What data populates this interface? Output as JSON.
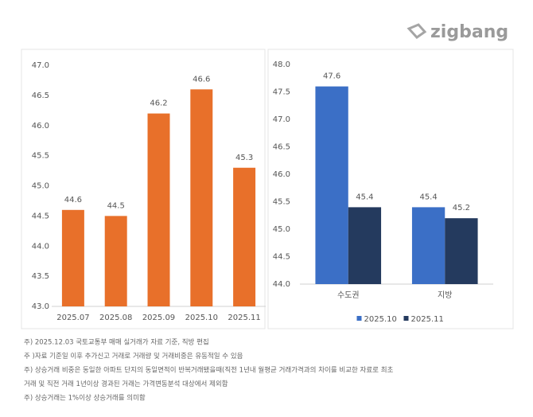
{
  "logo": "zigbang",
  "chart_data": [
    {
      "type": "bar",
      "categories": [
        "2025.07",
        "2025.08",
        "2025.09",
        "2025.10",
        "2025.11"
      ],
      "values": [
        44.6,
        44.5,
        46.2,
        46.6,
        45.3
      ],
      "color": "#e8702a",
      "ylim": [
        43,
        47
      ],
      "yticks": [
        {
          "value": 43,
          "label": "43.0"
        },
        {
          "value": 43.5,
          "label": "43.5"
        },
        {
          "value": 44,
          "label": "44.0"
        },
        {
          "value": 44.5,
          "label": "44.5"
        },
        {
          "value": 45,
          "label": "45.0"
        },
        {
          "value": 45.5,
          "label": "45.5"
        },
        {
          "value": 46,
          "label": "46.0"
        },
        {
          "value": 46.5,
          "label": "46.5"
        },
        {
          "value": 47,
          "label": "47.0"
        }
      ],
      "grid": false
    },
    {
      "type": "bar",
      "categories": [
        "수도권",
        "지방"
      ],
      "series": [
        {
          "name": "2025.10",
          "color": "#3b6fc6",
          "values": [
            47.6,
            45.4
          ]
        },
        {
          "name": "2025.11",
          "color": "#243a5e",
          "values": [
            45.4,
            45.2
          ]
        }
      ],
      "ylim": [
        44,
        48
      ],
      "yticks": [
        {
          "value": 44,
          "label": "44.0"
        },
        {
          "value": 44.5,
          "label": "44.5"
        },
        {
          "value": 45,
          "label": "45.0"
        },
        {
          "value": 45.5,
          "label": "45.5"
        },
        {
          "value": 46,
          "label": "46.0"
        },
        {
          "value": 46.5,
          "label": "46.5"
        },
        {
          "value": 47,
          "label": "47.0"
        },
        {
          "value": 47.5,
          "label": "47.5"
        },
        {
          "value": 48,
          "label": "48.0"
        }
      ],
      "grid": false,
      "legend": "bottom"
    }
  ],
  "notes": [
    "주) 2025.12.03 국토교통부 매매 실거래가 자료 기준, 직방 편집",
    "주 )자료 기준일 이후 추가신고 거래로 거래량 및 거래비중은 유동적일 수 있음",
    "주) 상승거래 비중은 동일한 아파트 단지의 동일면적이 반복거래됐을때(직전 1년내 월평균 거래가격과의 차이를 비교한 자료로 최초",
    "거래 및 직전 거래 1년이상 경과된 거래는 가격변동분석 대상에서 제외함",
    "주) 상승거래는 1%이상 상승거래를 의미함"
  ]
}
